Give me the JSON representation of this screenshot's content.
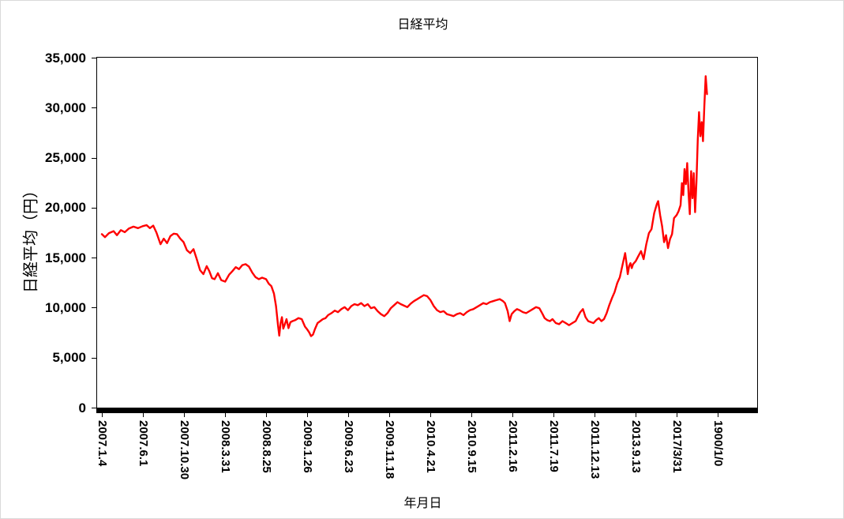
{
  "chart_data": {
    "type": "line",
    "title": "日経平均",
    "xlabel": "年月日",
    "ylabel": "日経平均（円）",
    "ylim": [
      0,
      35000
    ],
    "y_tick_step": 5000,
    "grid": false,
    "legend_position": "none",
    "line_color": "#FF0000",
    "y_tick_labels": [
      "0",
      "5,000",
      "10,000",
      "15,000",
      "20,000",
      "25,000",
      "30,000",
      "35,000"
    ],
    "x_tick_labels": [
      "2007.1.4",
      "2007.6.1",
      "2007.10.30",
      "2008.3.31",
      "2008.8.25",
      "2009.1.26",
      "2009.6.23",
      "2009.11.18",
      "2010.4.21",
      "2010.9.15",
      "2011.2.16",
      "2011.7.19",
      "2011.12.13",
      "2013.9.13",
      "2017/3/31",
      "1900/1/0"
    ],
    "x_tick_positions": [
      0.0072,
      0.0694,
      0.1316,
      0.1938,
      0.256,
      0.3182,
      0.3804,
      0.4426,
      0.5048,
      0.567,
      0.6292,
      0.6914,
      0.7536,
      0.8158,
      0.878,
      0.9402
    ],
    "series": [
      {
        "name": "日経平均",
        "color": "#FF0000",
        "points": [
          [
            0.0072,
            17350
          ],
          [
            0.012,
            17050
          ],
          [
            0.018,
            17450
          ],
          [
            0.025,
            17650
          ],
          [
            0.03,
            17250
          ],
          [
            0.036,
            17750
          ],
          [
            0.042,
            17550
          ],
          [
            0.048,
            17900
          ],
          [
            0.055,
            18100
          ],
          [
            0.062,
            17950
          ],
          [
            0.069,
            18150
          ],
          [
            0.075,
            18250
          ],
          [
            0.08,
            17950
          ],
          [
            0.085,
            18200
          ],
          [
            0.09,
            17500
          ],
          [
            0.096,
            16350
          ],
          [
            0.101,
            16900
          ],
          [
            0.106,
            16450
          ],
          [
            0.111,
            17150
          ],
          [
            0.116,
            17400
          ],
          [
            0.121,
            17350
          ],
          [
            0.126,
            16900
          ],
          [
            0.131,
            16550
          ],
          [
            0.136,
            15750
          ],
          [
            0.141,
            15450
          ],
          [
            0.146,
            15850
          ],
          [
            0.151,
            14850
          ],
          [
            0.156,
            13750
          ],
          [
            0.161,
            13350
          ],
          [
            0.166,
            14150
          ],
          [
            0.17,
            13650
          ],
          [
            0.174,
            12950
          ],
          [
            0.178,
            12850
          ],
          [
            0.183,
            13450
          ],
          [
            0.188,
            12750
          ],
          [
            0.194,
            12600
          ],
          [
            0.2,
            13300
          ],
          [
            0.205,
            13650
          ],
          [
            0.21,
            14050
          ],
          [
            0.215,
            13850
          ],
          [
            0.22,
            14250
          ],
          [
            0.225,
            14350
          ],
          [
            0.23,
            14100
          ],
          [
            0.235,
            13500
          ],
          [
            0.24,
            13050
          ],
          [
            0.245,
            12850
          ],
          [
            0.25,
            13000
          ],
          [
            0.256,
            12850
          ],
          [
            0.26,
            12400
          ],
          [
            0.264,
            12150
          ],
          [
            0.268,
            11400
          ],
          [
            0.271,
            10150
          ],
          [
            0.274,
            8250
          ],
          [
            0.276,
            7200
          ],
          [
            0.278,
            8450
          ],
          [
            0.28,
            9050
          ],
          [
            0.282,
            7900
          ],
          [
            0.284,
            8250
          ],
          [
            0.287,
            8850
          ],
          [
            0.29,
            7950
          ],
          [
            0.293,
            8550
          ],
          [
            0.296,
            8650
          ],
          [
            0.3,
            8750
          ],
          [
            0.305,
            8950
          ],
          [
            0.31,
            8850
          ],
          [
            0.315,
            8100
          ],
          [
            0.318,
            7850
          ],
          [
            0.321,
            7550
          ],
          [
            0.324,
            7150
          ],
          [
            0.327,
            7300
          ],
          [
            0.33,
            7850
          ],
          [
            0.334,
            8450
          ],
          [
            0.338,
            8650
          ],
          [
            0.342,
            8850
          ],
          [
            0.346,
            8950
          ],
          [
            0.35,
            9250
          ],
          [
            0.355,
            9450
          ],
          [
            0.36,
            9700
          ],
          [
            0.365,
            9550
          ],
          [
            0.37,
            9850
          ],
          [
            0.375,
            10050
          ],
          [
            0.38,
            9750
          ],
          [
            0.385,
            10150
          ],
          [
            0.39,
            10350
          ],
          [
            0.395,
            10250
          ],
          [
            0.4,
            10450
          ],
          [
            0.405,
            10150
          ],
          [
            0.41,
            10350
          ],
          [
            0.415,
            9950
          ],
          [
            0.42,
            10050
          ],
          [
            0.425,
            9650
          ],
          [
            0.43,
            9350
          ],
          [
            0.435,
            9150
          ],
          [
            0.44,
            9450
          ],
          [
            0.445,
            9950
          ],
          [
            0.45,
            10250
          ],
          [
            0.455,
            10550
          ],
          [
            0.46,
            10350
          ],
          [
            0.465,
            10200
          ],
          [
            0.47,
            10050
          ],
          [
            0.475,
            10400
          ],
          [
            0.48,
            10650
          ],
          [
            0.485,
            10850
          ],
          [
            0.49,
            11050
          ],
          [
            0.495,
            11250
          ],
          [
            0.5,
            11150
          ],
          [
            0.505,
            10750
          ],
          [
            0.51,
            10150
          ],
          [
            0.515,
            9750
          ],
          [
            0.52,
            9550
          ],
          [
            0.525,
            9650
          ],
          [
            0.53,
            9350
          ],
          [
            0.535,
            9250
          ],
          [
            0.54,
            9150
          ],
          [
            0.545,
            9350
          ],
          [
            0.55,
            9450
          ],
          [
            0.555,
            9250
          ],
          [
            0.56,
            9550
          ],
          [
            0.565,
            9750
          ],
          [
            0.57,
            9850
          ],
          [
            0.575,
            10050
          ],
          [
            0.58,
            10250
          ],
          [
            0.585,
            10450
          ],
          [
            0.59,
            10350
          ],
          [
            0.595,
            10550
          ],
          [
            0.6,
            10650
          ],
          [
            0.605,
            10750
          ],
          [
            0.61,
            10850
          ],
          [
            0.615,
            10650
          ],
          [
            0.618,
            10450
          ],
          [
            0.622,
            9650
          ],
          [
            0.625,
            8650
          ],
          [
            0.628,
            9350
          ],
          [
            0.632,
            9650
          ],
          [
            0.636,
            9850
          ],
          [
            0.64,
            9750
          ],
          [
            0.645,
            9550
          ],
          [
            0.65,
            9450
          ],
          [
            0.655,
            9650
          ],
          [
            0.66,
            9850
          ],
          [
            0.665,
            10050
          ],
          [
            0.67,
            9950
          ],
          [
            0.675,
            9350
          ],
          [
            0.678,
            8950
          ],
          [
            0.682,
            8750
          ],
          [
            0.686,
            8650
          ],
          [
            0.69,
            8850
          ],
          [
            0.695,
            8450
          ],
          [
            0.7,
            8350
          ],
          [
            0.705,
            8650
          ],
          [
            0.71,
            8450
          ],
          [
            0.715,
            8250
          ],
          [
            0.72,
            8450
          ],
          [
            0.725,
            8650
          ],
          [
            0.728,
            9050
          ],
          [
            0.732,
            9550
          ],
          [
            0.736,
            9850
          ],
          [
            0.74,
            9050
          ],
          [
            0.744,
            8650
          ],
          [
            0.748,
            8550
          ],
          [
            0.752,
            8450
          ],
          [
            0.756,
            8750
          ],
          [
            0.76,
            8950
          ],
          [
            0.764,
            8650
          ],
          [
            0.768,
            8850
          ],
          [
            0.772,
            9450
          ],
          [
            0.776,
            10250
          ],
          [
            0.78,
            10950
          ],
          [
            0.784,
            11550
          ],
          [
            0.788,
            12450
          ],
          [
            0.792,
            13050
          ],
          [
            0.795,
            13950
          ],
          [
            0.798,
            14850
          ],
          [
            0.8,
            15450
          ],
          [
            0.802,
            14450
          ],
          [
            0.804,
            13350
          ],
          [
            0.806,
            14150
          ],
          [
            0.808,
            14450
          ],
          [
            0.81,
            13950
          ],
          [
            0.812,
            14350
          ],
          [
            0.816,
            14650
          ],
          [
            0.82,
            15150
          ],
          [
            0.824,
            15650
          ],
          [
            0.828,
            14850
          ],
          [
            0.832,
            16350
          ],
          [
            0.836,
            17450
          ],
          [
            0.84,
            17850
          ],
          [
            0.844,
            19450
          ],
          [
            0.848,
            20350
          ],
          [
            0.85,
            20650
          ],
          [
            0.853,
            19250
          ],
          [
            0.856,
            18150
          ],
          [
            0.859,
            16550
          ],
          [
            0.862,
            17250
          ],
          [
            0.865,
            15950
          ],
          [
            0.868,
            16850
          ],
          [
            0.871,
            17350
          ],
          [
            0.874,
            18950
          ],
          [
            0.878,
            19250
          ],
          [
            0.881,
            19650
          ],
          [
            0.884,
            20250
          ],
          [
            0.886,
            22450
          ],
          [
            0.888,
            21250
          ],
          [
            0.89,
            23850
          ],
          [
            0.892,
            22350
          ],
          [
            0.894,
            24450
          ],
          [
            0.896,
            21450
          ],
          [
            0.898,
            19350
          ],
          [
            0.9,
            23650
          ],
          [
            0.902,
            20950
          ],
          [
            0.904,
            23450
          ],
          [
            0.906,
            19550
          ],
          [
            0.908,
            22550
          ],
          [
            0.91,
            26850
          ],
          [
            0.912,
            29550
          ],
          [
            0.914,
            27150
          ],
          [
            0.916,
            28550
          ],
          [
            0.918,
            26650
          ],
          [
            0.92,
            30150
          ],
          [
            0.922,
            33150
          ],
          [
            0.924,
            31350
          ]
        ]
      }
    ]
  }
}
